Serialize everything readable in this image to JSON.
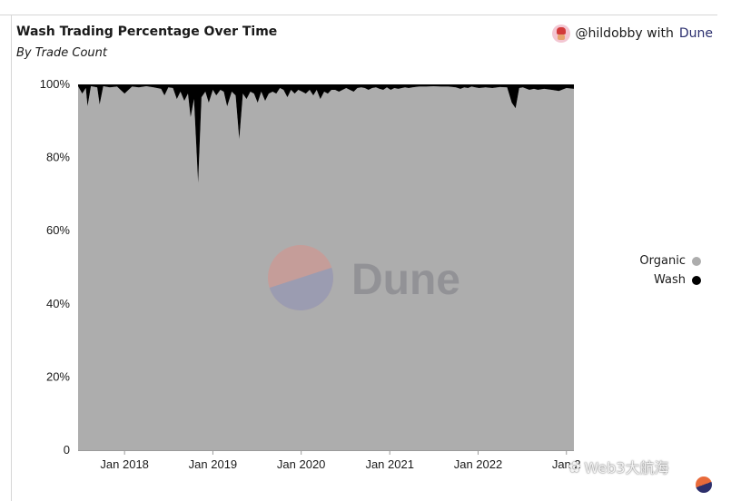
{
  "header": {
    "title": "Wash Trading Percentage Over Time",
    "subtitle": "By Trade Count",
    "credit_user": "@hildobby with",
    "credit_brand": "Dune"
  },
  "watermark": {
    "dune": "Dune",
    "corner": "Web3大航海"
  },
  "colors": {
    "organic": "#adadad",
    "wash": "#000000"
  },
  "chart_data": {
    "type": "area",
    "stacked": true,
    "percent": true,
    "title": "Wash Trading Percentage Over Time",
    "subtitle": "By Trade Count",
    "xlabel": "",
    "ylabel": "",
    "ylim": [
      0,
      100
    ],
    "yticks": [
      0,
      20,
      40,
      60,
      80,
      100
    ],
    "ytick_labels": [
      "0",
      "20%",
      "40%",
      "60%",
      "80%",
      "100%"
    ],
    "xlim": [
      "2017-06-23",
      "2023-02-01"
    ],
    "xticks": [
      "2018-01-01",
      "2019-01-01",
      "2020-01-01",
      "2021-01-01",
      "2022-01-01",
      "2023-01-01"
    ],
    "xtick_labels": [
      "Jan 2018",
      "Jan 2019",
      "Jan 2020",
      "Jan 2021",
      "Jan 2022",
      "Jan 2"
    ],
    "legend": {
      "position": "right",
      "entries": [
        "Organic",
        "Wash"
      ]
    },
    "grid": false,
    "series": [
      {
        "name": "Wash",
        "x": [
          "2017-06-23",
          "2017-07-10",
          "2017-07-25",
          "2017-08-01",
          "2017-08-15",
          "2017-09-10",
          "2017-09-20",
          "2017-10-05",
          "2017-11-01",
          "2017-12-01",
          "2018-01-01",
          "2018-02-01",
          "2018-03-01",
          "2018-04-01",
          "2018-05-01",
          "2018-06-01",
          "2018-06-15",
          "2018-07-01",
          "2018-07-20",
          "2018-08-05",
          "2018-08-20",
          "2018-09-05",
          "2018-09-20",
          "2018-10-01",
          "2018-10-15",
          "2018-11-01",
          "2018-11-15",
          "2018-12-01",
          "2018-12-15",
          "2019-01-01",
          "2019-01-15",
          "2019-02-01",
          "2019-02-15",
          "2019-03-01",
          "2019-03-20",
          "2019-04-05",
          "2019-04-20",
          "2019-05-05",
          "2019-05-20",
          "2019-06-05",
          "2019-06-20",
          "2019-07-05",
          "2019-07-20",
          "2019-08-05",
          "2019-08-20",
          "2019-09-05",
          "2019-09-20",
          "2019-10-05",
          "2019-10-20",
          "2019-11-05",
          "2019-11-20",
          "2019-12-05",
          "2019-12-20",
          "2020-01-05",
          "2020-01-20",
          "2020-02-05",
          "2020-02-20",
          "2020-03-05",
          "2020-03-20",
          "2020-04-05",
          "2020-04-20",
          "2020-05-05",
          "2020-05-20",
          "2020-06-05",
          "2020-06-20",
          "2020-07-05",
          "2020-07-20",
          "2020-08-05",
          "2020-08-20",
          "2020-09-05",
          "2020-09-20",
          "2020-10-05",
          "2020-10-20",
          "2020-11-05",
          "2020-11-20",
          "2020-12-05",
          "2020-12-20",
          "2021-01-05",
          "2021-01-20",
          "2021-02-05",
          "2021-02-20",
          "2021-03-05",
          "2021-03-20",
          "2021-04-05",
          "2021-05-01",
          "2021-06-01",
          "2021-07-01",
          "2021-08-01",
          "2021-09-01",
          "2021-10-01",
          "2021-10-20",
          "2021-11-05",
          "2021-11-20",
          "2021-12-05",
          "2021-12-20",
          "2022-01-05",
          "2022-02-01",
          "2022-03-01",
          "2022-04-01",
          "2022-05-01",
          "2022-05-20",
          "2022-06-05",
          "2022-06-20",
          "2022-07-05",
          "2022-08-01",
          "2022-08-20",
          "2022-09-05",
          "2022-10-01",
          "2022-11-01",
          "2022-12-01",
          "2023-01-01",
          "2023-02-01"
        ],
        "values": [
          0.5,
          2.5,
          1.0,
          6.0,
          0.5,
          0.8,
          5.5,
          0.5,
          0.8,
          0.6,
          2.5,
          0.6,
          0.8,
          0.5,
          0.8,
          1.2,
          3.0,
          0.8,
          1.0,
          4.0,
          2.0,
          4.5,
          2.5,
          9.0,
          4.0,
          27.0,
          3.5,
          2.0,
          5.0,
          1.5,
          3.0,
          1.5,
          2.0,
          6.0,
          2.0,
          3.0,
          15.0,
          2.5,
          4.0,
          2.0,
          2.5,
          5.0,
          2.0,
          4.5,
          2.5,
          2.0,
          2.5,
          1.0,
          1.5,
          3.5,
          1.5,
          2.5,
          1.5,
          2.0,
          2.5,
          1.5,
          3.0,
          1.5,
          4.0,
          2.0,
          2.5,
          1.5,
          1.5,
          2.0,
          1.5,
          1.0,
          1.5,
          2.0,
          1.0,
          0.8,
          1.0,
          1.5,
          1.0,
          0.8,
          1.2,
          1.5,
          0.8,
          1.5,
          1.0,
          1.2,
          1.0,
          0.8,
          1.0,
          0.8,
          0.6,
          0.6,
          0.5,
          0.6,
          0.6,
          0.8,
          1.2,
          0.8,
          1.0,
          0.6,
          0.8,
          1.0,
          0.8,
          1.0,
          0.7,
          0.8,
          5.0,
          6.5,
          1.0,
          0.8,
          1.5,
          1.2,
          1.5,
          1.2,
          1.5,
          1.8,
          1.0,
          1.2
        ]
      }
    ]
  }
}
